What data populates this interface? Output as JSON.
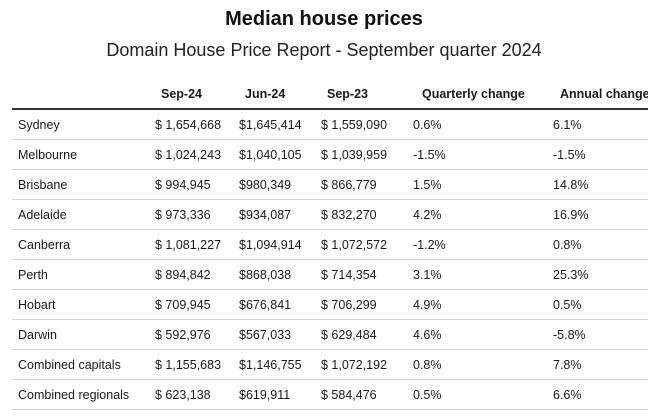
{
  "title": "Median house prices",
  "subtitle": "Domain House Price Report - September quarter 2024",
  "chart_data": {
    "type": "table",
    "title": "Median house prices",
    "subtitle": "Domain House Price Report - September quarter 2024",
    "columns": [
      "",
      "Sep-24",
      "Jun-24",
      "Sep-23",
      "Quarterly change",
      "Annual change"
    ],
    "rows": [
      [
        "Sydney",
        "$ 1,654,668",
        "$1,645,414",
        "$ 1,559,090",
        "0.6%",
        "6.1%"
      ],
      [
        "Melbourne",
        "$ 1,024,243",
        "$1,040,105",
        "$ 1,039,959",
        "-1.5%",
        "-1.5%"
      ],
      [
        "Brisbane",
        "$ 994,945",
        "$980,349",
        "$ 866,779",
        "1.5%",
        "14.8%"
      ],
      [
        "Adelaide",
        "$ 973,336",
        "$934,087",
        "$ 832,270",
        "4.2%",
        "16.9%"
      ],
      [
        "Canberra",
        "$ 1,081,227",
        "$1,094,914",
        "$ 1,072,572",
        "-1.2%",
        "0.8%"
      ],
      [
        "Perth",
        "$ 894,842",
        "$868,038",
        "$ 714,354",
        "3.1%",
        "25.3%"
      ],
      [
        "Hobart",
        "$ 709,945",
        "$676,841",
        "$ 706,299",
        "4.9%",
        "0.5%"
      ],
      [
        "Darwin",
        "$ 592,976",
        "$567,033",
        "$ 629,484",
        "4.6%",
        "-5.8%"
      ],
      [
        "Combined capitals",
        "$ 1,155,683",
        "$1,146,755",
        "$ 1,072,192",
        "0.8%",
        "7.8%"
      ],
      [
        "Combined regionals",
        "$ 623,138",
        "$619,911",
        "$ 584,476",
        "0.5%",
        "6.6%"
      ]
    ]
  }
}
